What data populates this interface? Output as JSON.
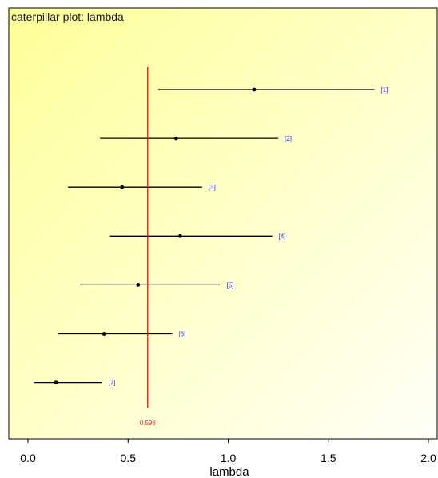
{
  "chart_data": {
    "type": "scatter",
    "title": "caterpillar plot: lambda",
    "xlabel": "lambda",
    "xlim": [
      -0.1,
      2.05
    ],
    "x_ticks": [
      "0.0",
      "0.5",
      "1.0",
      "1.5",
      "2.0"
    ],
    "grid": false,
    "reference_line": {
      "value": 0.598,
      "label": "0.598",
      "color": "#ff0000"
    },
    "items": [
      {
        "label": "[1]",
        "mean": 1.13,
        "lower": 0.65,
        "upper": 1.73
      },
      {
        "label": "[2]",
        "mean": 0.74,
        "lower": 0.36,
        "upper": 1.25
      },
      {
        "label": "[3]",
        "mean": 0.47,
        "lower": 0.2,
        "upper": 0.87
      },
      {
        "label": "[4]",
        "mean": 0.76,
        "lower": 0.41,
        "upper": 1.22
      },
      {
        "label": "[5]",
        "mean": 0.55,
        "lower": 0.26,
        "upper": 0.96
      },
      {
        "label": "[6]",
        "mean": 0.38,
        "lower": 0.15,
        "upper": 0.72
      },
      {
        "label": "[7]",
        "mean": 0.14,
        "lower": 0.03,
        "upper": 0.37
      }
    ],
    "colors": {
      "background_start": "#ffff99",
      "background_end": "#fffff7",
      "interval": "#000000",
      "label": "#2b2bff",
      "reference": "#ff0000"
    }
  }
}
